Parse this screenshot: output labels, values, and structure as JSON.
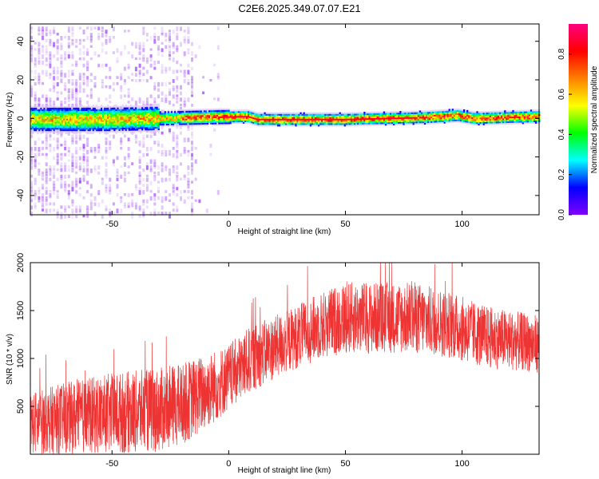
{
  "title": "C2E6.2025.349.07.07.E21",
  "chart_data": [
    {
      "type": "heatmap",
      "title": "",
      "xlabel": "Height of straight line (km)",
      "ylabel": "Frequency (Hz)",
      "xlim": [
        -85,
        133
      ],
      "ylim": [
        -50,
        49
      ],
      "xticks": [
        -50,
        0,
        50,
        100
      ],
      "yticks": [
        -40,
        -20,
        0,
        20,
        40
      ],
      "ridge_center_hz": [
        {
          "x": -85,
          "y": 0
        },
        {
          "x": -50,
          "y": 0
        },
        {
          "x": 8,
          "y": 1.5
        },
        {
          "x": 12,
          "y": 0
        },
        {
          "x": 50,
          "y": 0
        },
        {
          "x": 85,
          "y": 1
        },
        {
          "x": 98,
          "y": 2
        },
        {
          "x": 105,
          "y": 0.5
        },
        {
          "x": 133,
          "y": 1.5
        }
      ],
      "noise_region_x": [
        -85,
        -15
      ],
      "colorbar": {
        "label": "Normalized spectral amplitude",
        "range": [
          0,
          0.95
        ],
        "ticks": [
          "0.0",
          "0.2",
          "0.4",
          "0.6",
          "0.8"
        ],
        "colormap": [
          "#8000ff",
          "#0000ff",
          "#00ffff",
          "#00ff00",
          "#ffff00",
          "#ff8000",
          "#ff0000",
          "#ff0080"
        ]
      }
    },
    {
      "type": "line",
      "title": "",
      "xlabel": "Height of straight line (km)",
      "ylabel": "SNR (10 * v/v)",
      "xlim": [
        -85,
        133
      ],
      "ylim": [
        0,
        2000
      ],
      "xticks": [
        -50,
        0,
        50,
        100
      ],
      "yticks": [
        500,
        1000,
        1500,
        2000
      ],
      "series": [
        {
          "name": "SNR",
          "color": "#ee3333",
          "envelope": [
            {
              "x": -85,
              "low": 0,
              "high": 650
            },
            {
              "x": -70,
              "low": 0,
              "high": 750
            },
            {
              "x": -50,
              "low": 0,
              "high": 850
            },
            {
              "x": -30,
              "low": 20,
              "high": 900
            },
            {
              "x": -20,
              "low": 100,
              "high": 950
            },
            {
              "x": -10,
              "low": 250,
              "high": 1050
            },
            {
              "x": 0,
              "low": 450,
              "high": 1150
            },
            {
              "x": 10,
              "low": 650,
              "high": 1350
            },
            {
              "x": 25,
              "low": 850,
              "high": 1500
            },
            {
              "x": 40,
              "low": 1000,
              "high": 1700
            },
            {
              "x": 50,
              "low": 1050,
              "high": 1800
            },
            {
              "x": 65,
              "low": 1050,
              "high": 1800
            },
            {
              "x": 80,
              "low": 1050,
              "high": 1800
            },
            {
              "x": 95,
              "low": 1000,
              "high": 1700
            },
            {
              "x": 110,
              "low": 900,
              "high": 1550
            },
            {
              "x": 133,
              "low": 850,
              "high": 1450
            }
          ]
        }
      ]
    }
  ]
}
